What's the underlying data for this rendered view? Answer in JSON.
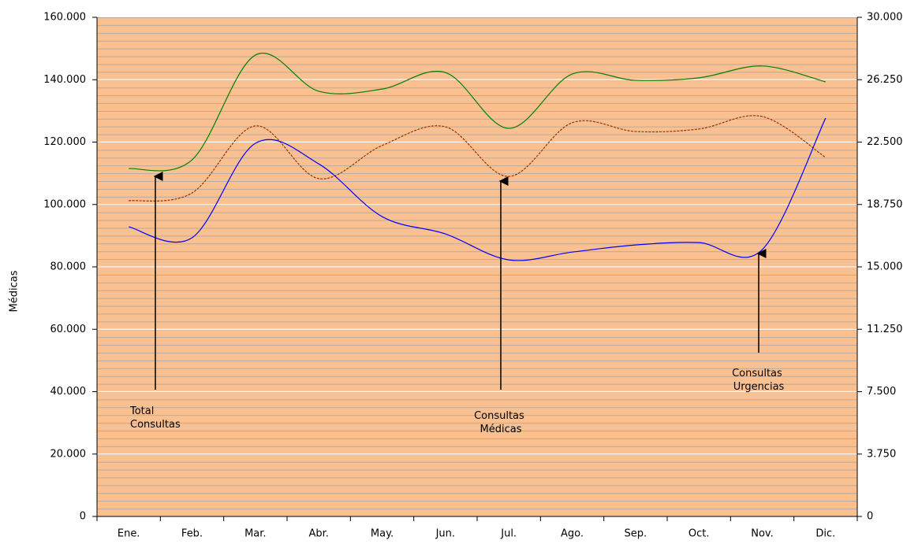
{
  "chart_data": {
    "type": "line",
    "y_label": "Médicas",
    "categories": [
      "Ene.",
      "Feb.",
      "Mar.",
      "Abr.",
      "May.",
      "Jun.",
      "Jul.",
      "Ago.",
      "Sep.",
      "Oct.",
      "Nov.",
      "Dic."
    ],
    "series": [
      {
        "name": "Total Consultas",
        "color": "#008000",
        "dash": false,
        "axis": "y",
        "values": [
          111500,
          114300,
          147900,
          136300,
          137000,
          142300,
          124400,
          141800,
          139800,
          140600,
          144400,
          139300
        ]
      },
      {
        "name": "Consultas Médicas",
        "color": "#993300",
        "dash": true,
        "axis": "y",
        "values": [
          101200,
          103700,
          125200,
          108300,
          118900,
          124900,
          109000,
          126200,
          123400,
          124200,
          128200,
          115100
        ]
      },
      {
        "name": "Consultas Urgencias",
        "color": "#0000ff",
        "dash": false,
        "axis": "y2",
        "values": [
          17410,
          16750,
          22430,
          21190,
          18020,
          16980,
          15420,
          15890,
          16320,
          16460,
          16040,
          23940
        ]
      }
    ],
    "ylim": [
      0,
      160000
    ],
    "yticks": [
      0,
      {
        "value": 20000,
        "label": "20.000"
      },
      {
        "value": 40000,
        "label": "40.000"
      },
      {
        "value": 60000,
        "label": "60.000"
      },
      {
        "value": 80000,
        "label": "80.000"
      },
      {
        "value": 100000,
        "label": "100.000"
      },
      {
        "value": 120000,
        "label": "120.000"
      },
      {
        "value": 140000,
        "label": "140.000"
      },
      {
        "value": 160000,
        "label": "160.000"
      }
    ],
    "y2lim": [
      0,
      30000
    ],
    "y2ticks": [
      0,
      {
        "value": 3750,
        "label": "3.750"
      },
      {
        "value": 7500,
        "label": "7.500"
      },
      {
        "value": 11250,
        "label": "11.250"
      },
      {
        "value": 15000,
        "label": "15.000"
      },
      {
        "value": 18750,
        "label": "18.750"
      },
      {
        "value": 22500,
        "label": "22.500"
      },
      {
        "value": 26250,
        "label": "26.250"
      },
      {
        "value": 30000,
        "label": "30.000"
      }
    ],
    "grid": true,
    "background": "#fac090",
    "annotations": [
      "Total Consultas",
      "Consultas Médicas",
      "Consultas Urgencias"
    ]
  }
}
